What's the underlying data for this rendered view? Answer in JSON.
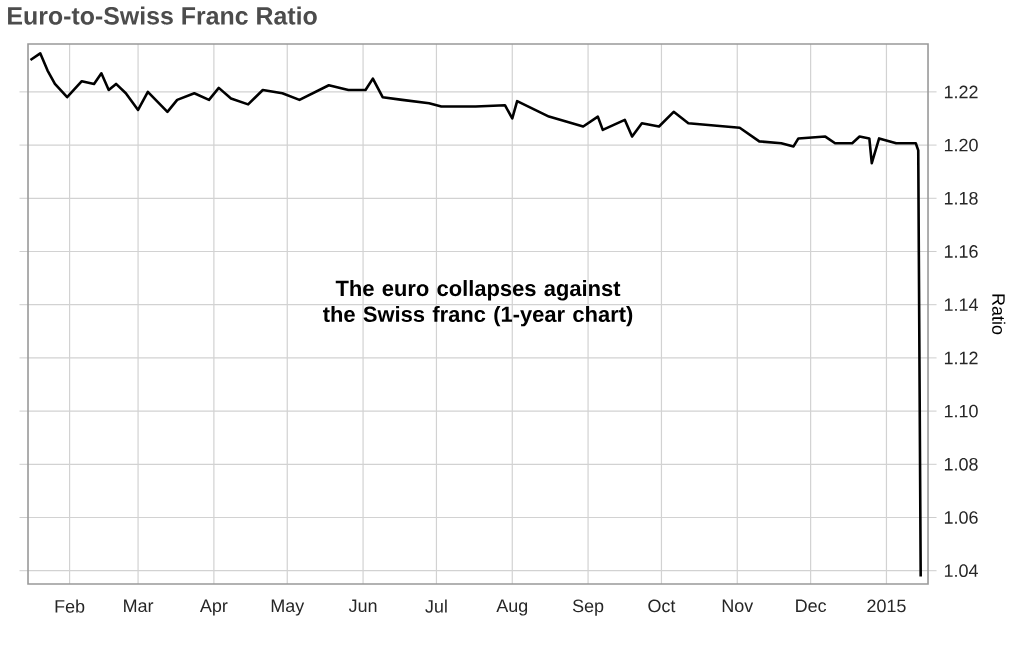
{
  "chart_data": {
    "type": "line",
    "title": "Euro-to-Swiss Franc Ratio",
    "ylabel": "Ratio",
    "annotations": [
      "The euro collapses against the Swiss franc (1-year chart)"
    ],
    "x": [
      "2014-01-16",
      "2014-01-20",
      "2014-01-23",
      "2014-01-26",
      "2014-01-31",
      "2014-02-06",
      "2014-02-11",
      "2014-02-14",
      "2014-02-17",
      "2014-02-20",
      "2014-02-24",
      "2014-03-01",
      "2014-03-05",
      "2014-03-13",
      "2014-03-17",
      "2014-03-24",
      "2014-03-30",
      "2014-04-03",
      "2014-04-08",
      "2014-04-15",
      "2014-04-21",
      "2014-04-29",
      "2014-05-06",
      "2014-05-18",
      "2014-05-26",
      "2014-06-02",
      "2014-06-05",
      "2014-06-09",
      "2014-06-17",
      "2014-06-28",
      "2014-07-03",
      "2014-07-17",
      "2014-07-29",
      "2014-08-01",
      "2014-08-03",
      "2014-08-16",
      "2014-08-30",
      "2014-09-05",
      "2014-09-07",
      "2014-09-16",
      "2014-09-19",
      "2014-09-23",
      "2014-09-30",
      "2014-10-06",
      "2014-10-12",
      "2014-11-02",
      "2014-11-10",
      "2014-11-19",
      "2014-11-24",
      "2014-11-26",
      "2014-12-07",
      "2014-12-11",
      "2014-12-18",
      "2014-12-21",
      "2014-12-25",
      "2014-12-26",
      "2014-12-29",
      "2015-01-05",
      "2015-01-13",
      "2015-01-14",
      "2015-01-15"
    ],
    "series": [
      {
        "color": "#000000",
        "values": [
          1.232,
          1.2345,
          1.228,
          1.223,
          1.218,
          1.224,
          1.223,
          1.227,
          1.2207,
          1.223,
          1.2195,
          1.2132,
          1.22,
          1.2125,
          1.217,
          1.2195,
          1.217,
          1.2215,
          1.2175,
          1.2153,
          1.2207,
          1.2195,
          1.217,
          1.2225,
          1.2207,
          1.2207,
          1.225,
          1.218,
          1.217,
          1.2157,
          1.2145,
          1.2145,
          1.215,
          1.21,
          1.2165,
          1.2107,
          1.207,
          1.2107,
          1.2057,
          1.2095,
          1.2032,
          1.2082,
          1.207,
          1.2125,
          1.2082,
          1.2065,
          1.2014,
          1.2007,
          1.1995,
          1.2025,
          1.2032,
          1.2007,
          1.2007,
          1.2032,
          1.2025,
          1.1932,
          1.2025,
          1.2007,
          1.2007,
          1.198,
          1.0378
        ]
      }
    ],
    "xlim": [
      "2014-01-15",
      "2015-01-18"
    ],
    "xticks": [
      {
        "value": "2014-02-01",
        "label": "Feb"
      },
      {
        "value": "2014-03-01",
        "label": "Mar"
      },
      {
        "value": "2014-04-01",
        "label": "Apr"
      },
      {
        "value": "2014-05-01",
        "label": "May"
      },
      {
        "value": "2014-06-01",
        "label": "Jun"
      },
      {
        "value": "2014-07-01",
        "label": "Jul"
      },
      {
        "value": "2014-08-01",
        "label": "Aug"
      },
      {
        "value": "2014-09-01",
        "label": "Sep"
      },
      {
        "value": "2014-10-01",
        "label": "Oct"
      },
      {
        "value": "2014-11-01",
        "label": "Nov"
      },
      {
        "value": "2014-12-01",
        "label": "Dec"
      },
      {
        "value": "2015-01-01",
        "label": "2015"
      }
    ],
    "ylim": [
      1.035,
      1.238
    ],
    "yticks": [
      1.04,
      1.06,
      1.08,
      {
        "value": 1.1,
        "label": "1.10"
      },
      1.12,
      1.14,
      1.16,
      1.18,
      {
        "value": 1.2,
        "label": "1.20"
      },
      1.22
    ],
    "grid": true,
    "marker": "none",
    "line_style": "solid"
  }
}
